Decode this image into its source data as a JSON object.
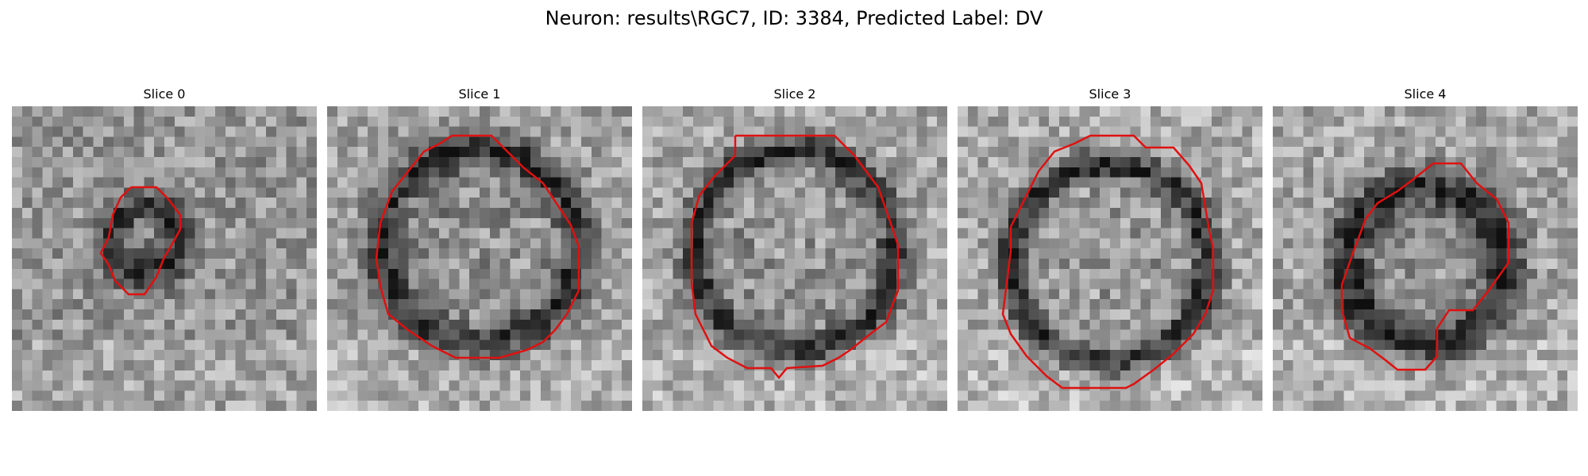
{
  "figure": {
    "title": "Neuron: results\\RGC7, ID: 3384, Predicted Label: DV",
    "contour_color": "#e01010",
    "image_style": "grayscale-pixelated",
    "panels": [
      {
        "title": "Slice 0"
      },
      {
        "title": "Slice 1"
      },
      {
        "title": "Slice 2"
      },
      {
        "title": "Slice 3"
      },
      {
        "title": "Slice 4"
      }
    ]
  }
}
